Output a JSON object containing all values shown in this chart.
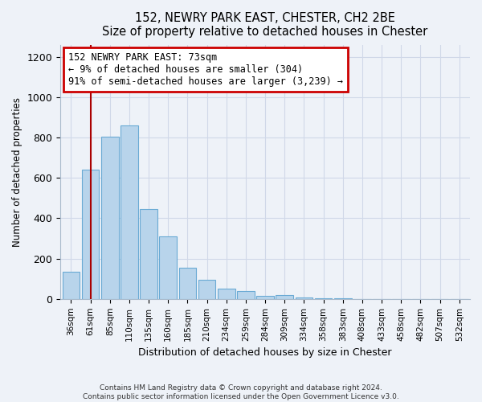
{
  "title1": "152, NEWRY PARK EAST, CHESTER, CH2 2BE",
  "title2": "Size of property relative to detached houses in Chester",
  "xlabel": "Distribution of detached houses by size in Chester",
  "ylabel": "Number of detached properties",
  "bin_labels": [
    "36sqm",
    "61sqm",
    "85sqm",
    "110sqm",
    "135sqm",
    "160sqm",
    "185sqm",
    "210sqm",
    "234sqm",
    "259sqm",
    "284sqm",
    "309sqm",
    "334sqm",
    "358sqm",
    "383sqm",
    "408sqm",
    "433sqm",
    "458sqm",
    "482sqm",
    "507sqm",
    "532sqm"
  ],
  "bar_heights": [
    135,
    640,
    805,
    860,
    445,
    310,
    155,
    95,
    50,
    40,
    15,
    20,
    8,
    3,
    3,
    0,
    0,
    0,
    0,
    0,
    0
  ],
  "bar_color": "#b8d4eb",
  "bar_edge_color": "#6aaad4",
  "vline_x": 1.0,
  "vline_color": "#aa0000",
  "annotation_line1": "152 NEWRY PARK EAST: 73sqm",
  "annotation_line2": "← 9% of detached houses are smaller (304)",
  "annotation_line3": "91% of semi-detached houses are larger (3,239) →",
  "annotation_box_color": "#ffffff",
  "annotation_box_edge": "#cc0000",
  "ylim": [
    0,
    1260
  ],
  "yticks": [
    0,
    200,
    400,
    600,
    800,
    1000,
    1200
  ],
  "footer1": "Contains HM Land Registry data © Crown copyright and database right 2024.",
  "footer2": "Contains public sector information licensed under the Open Government Licence v3.0.",
  "bg_color": "#eef2f8",
  "grid_color": "#d0d8e8",
  "spine_color": "#aabbcc"
}
